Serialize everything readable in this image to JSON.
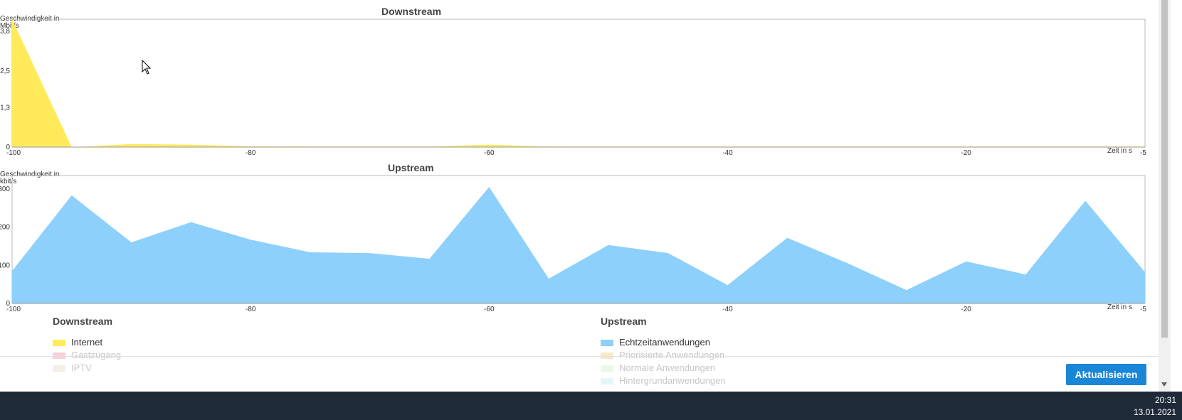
{
  "charts": {
    "downstream": {
      "title": "Downstream",
      "ylabel": "Geschwindigkeit in Mbit/s",
      "ytick_labels": [
        "0",
        "1,3",
        "2,5",
        "3,8"
      ],
      "xtick_labels": [
        "-100",
        "-80",
        "-60",
        "-40",
        "-20",
        "-5"
      ],
      "xlabel": "Zeit in s",
      "color": "#ffea5c"
    },
    "upstream": {
      "title": "Upstream",
      "ylabel": "Geschwindigkeit in kbit/s",
      "ytick_labels": [
        "0",
        "100",
        "200",
        "300"
      ],
      "xtick_labels": [
        "-100",
        "-80",
        "-60",
        "-40",
        "-20",
        "-5"
      ],
      "xlabel": "Zeit in s",
      "color": "#8dd0fb"
    }
  },
  "chart_data": [
    {
      "type": "area",
      "title": "Downstream",
      "ylabel": "Geschwindigkeit in Mbit/s",
      "xlabel": "Zeit in s",
      "xlim": [
        -100,
        -5
      ],
      "ylim": [
        0,
        4.2
      ],
      "grid": false,
      "x": [
        -100,
        -95,
        -90,
        -85,
        -80,
        -75,
        -70,
        -65,
        -60,
        -55,
        -50,
        -45,
        -40,
        -35,
        -30,
        -25,
        -20,
        -15,
        -10,
        -5
      ],
      "series": [
        {
          "name": "Internet",
          "values": [
            4.2,
            0.0,
            0.1,
            0.08,
            0.03,
            0.02,
            0.02,
            0.02,
            0.08,
            0.02,
            0.02,
            0.02,
            0.02,
            0.02,
            0.02,
            0.02,
            0.02,
            0.02,
            0.02,
            0.02
          ]
        }
      ]
    },
    {
      "type": "area",
      "title": "Upstream",
      "ylabel": "Geschwindigkeit in kbit/s",
      "xlabel": "Zeit in s",
      "xlim": [
        -100,
        -5
      ],
      "ylim": [
        0,
        335
      ],
      "grid": false,
      "x": [
        -100,
        -95,
        -90,
        -85,
        -80,
        -75,
        -70,
        -65,
        -60,
        -55,
        -50,
        -45,
        -40,
        -35,
        -30,
        -25,
        -20,
        -15,
        -10,
        -5
      ],
      "series": [
        {
          "name": "Echtzeitanwendungen",
          "values": [
            85,
            283,
            160,
            213,
            167,
            134,
            132,
            117,
            305,
            65,
            153,
            132,
            48,
            172,
            106,
            35,
            110,
            76,
            269,
            82
          ]
        }
      ]
    }
  ],
  "legend": {
    "downstream": {
      "title": "Downstream",
      "items": [
        {
          "label": "Internet",
          "color": "#ffea5c",
          "active": true
        },
        {
          "label": "Gastzugang",
          "color": "#e0556a",
          "active": false
        },
        {
          "label": "IPTV",
          "color": "#d8c9a0",
          "active": false
        }
      ]
    },
    "upstream": {
      "title": "Upstream",
      "items": [
        {
          "label": "Echtzeitanwendungen",
          "color": "#8dd0fb",
          "active": true
        },
        {
          "label": "Priorisierte Anwendungen",
          "color": "#e0b33a",
          "active": false
        },
        {
          "label": "Normale Anwendungen",
          "color": "#b8e6b0",
          "active": false
        },
        {
          "label": "Hintergrundanwendungen",
          "color": "#a8dcf0",
          "active": false
        }
      ]
    }
  },
  "buttons": {
    "refresh": "Aktualisieren"
  },
  "taskbar": {
    "time": "20:31",
    "date": "13.01.2021"
  }
}
